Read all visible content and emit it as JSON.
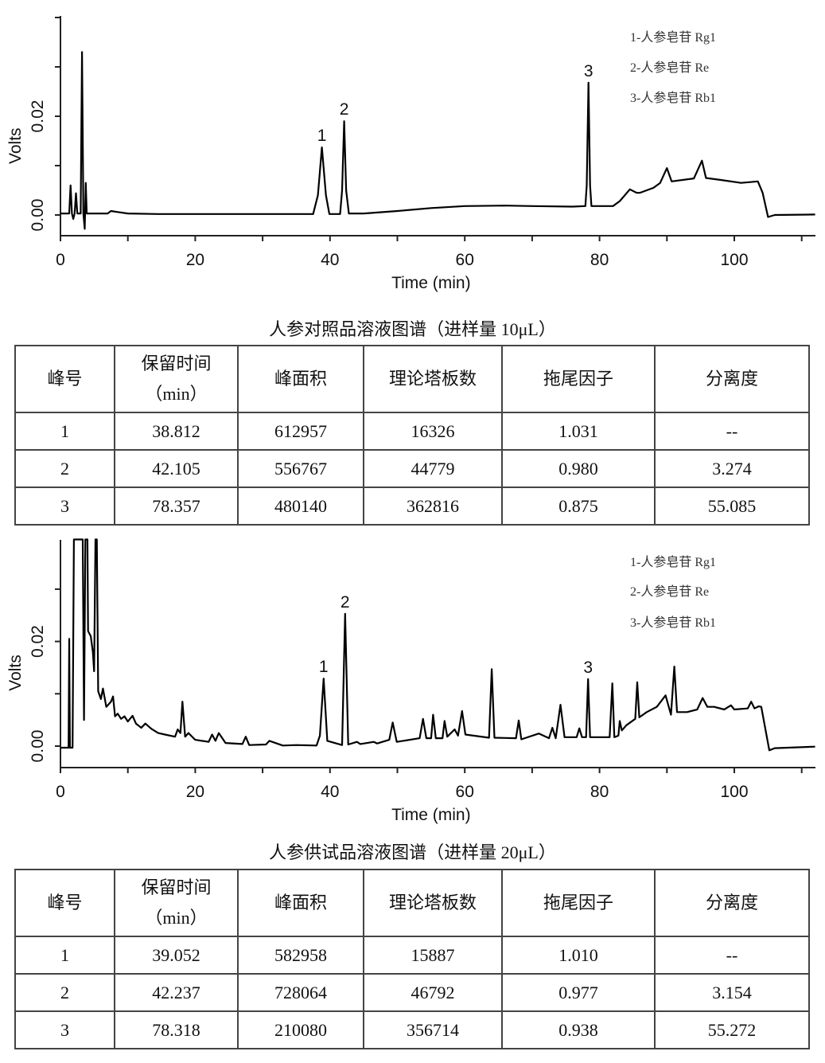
{
  "chart_data": [
    {
      "type": "line",
      "title": "人参对照品溶液图谱（进样量 10μL）",
      "xlabel": "Time (min)",
      "ylabel": "Volts",
      "xlim": [
        0,
        112
      ],
      "ylim": [
        -0.0042,
        0.04
      ],
      "xticks": [
        0,
        20,
        40,
        60,
        80,
        100
      ],
      "xtick_labels": [
        "0",
        "20",
        "40",
        "60",
        "80",
        "100"
      ],
      "yticks": [
        0.0,
        0.02
      ],
      "ytick_labels": [
        "0.00",
        "0.02"
      ],
      "grid": false,
      "legend": [
        "1-人参皂苷 Rg1",
        "2-人参皂苷 Re",
        "3-人参皂苷 Rb1"
      ],
      "legend_position": "top-right",
      "peak_labels": [
        {
          "label": "1",
          "t": 38.8,
          "v": 0.0137
        },
        {
          "label": "2",
          "t": 42.1,
          "v": 0.019
        },
        {
          "label": "3",
          "t": 78.36,
          "v": 0.0268
        }
      ],
      "series": [
        {
          "name": "trace",
          "points": [
            [
              0,
              0.0003
            ],
            [
              1.3,
              0.0003
            ],
            [
              1.5,
              0.006
            ],
            [
              1.7,
              0.0003
            ],
            [
              1.9,
              -0.0008
            ],
            [
              2.1,
              0.0003
            ],
            [
              2.3,
              0.0044
            ],
            [
              2.5,
              0.0003
            ],
            [
              3.0,
              0.0003
            ],
            [
              3.2,
              0.033
            ],
            [
              3.4,
              0.0003
            ],
            [
              3.6,
              -0.0028
            ],
            [
              3.75,
              0.0065
            ],
            [
              3.9,
              0.0003
            ],
            [
              7,
              0.0003
            ],
            [
              7.5,
              0.0008
            ],
            [
              8.5,
              0.0006
            ],
            [
              10,
              0.0003
            ],
            [
              14.5,
              0.0002
            ],
            [
              27,
              0.0002
            ],
            [
              37.5,
              0.0002
            ],
            [
              38.2,
              0.004
            ],
            [
              38.8,
              0.0137
            ],
            [
              39.4,
              0.004
            ],
            [
              39.9,
              0.0002
            ],
            [
              41.5,
              0.0002
            ],
            [
              41.8,
              0.005
            ],
            [
              42.1,
              0.019
            ],
            [
              42.4,
              0.005
            ],
            [
              42.8,
              0.0003
            ],
            [
              45,
              0.0003
            ],
            [
              50,
              0.0008
            ],
            [
              55,
              0.0014
            ],
            [
              60,
              0.0018
            ],
            [
              66,
              0.0019
            ],
            [
              70,
              0.0018
            ],
            [
              76,
              0.0017
            ],
            [
              77.9,
              0.0018
            ],
            [
              78.1,
              0.006
            ],
            [
              78.36,
              0.0268
            ],
            [
              78.6,
              0.006
            ],
            [
              78.8,
              0.0018
            ],
            [
              82,
              0.0018
            ],
            [
              83,
              0.0028
            ],
            [
              84.5,
              0.0052
            ],
            [
              85.5,
              0.0045
            ],
            [
              86,
              0.0045
            ],
            [
              88,
              0.0055
            ],
            [
              89,
              0.0065
            ],
            [
              90,
              0.0095
            ],
            [
              90.7,
              0.0068
            ],
            [
              94,
              0.0074
            ],
            [
              95.2,
              0.011
            ],
            [
              95.8,
              0.0075
            ],
            [
              98,
              0.0071
            ],
            [
              101,
              0.0065
            ],
            [
              103.5,
              0.0068
            ],
            [
              104.2,
              0.0045
            ],
            [
              105,
              -0.0004
            ],
            [
              106,
              0.0
            ],
            [
              112,
              0.0001
            ]
          ]
        }
      ]
    },
    {
      "type": "line",
      "title": "人参供试品溶液图谱（进样量 20μL）",
      "xlabel": "Time (min)",
      "ylabel": "Volts",
      "xlim": [
        0,
        112
      ],
      "ylim": [
        -0.004,
        0.0395
      ],
      "xticks": [
        0,
        20,
        40,
        60,
        80,
        100
      ],
      "xtick_labels": [
        "0",
        "20",
        "40",
        "60",
        "80",
        "100"
      ],
      "yticks": [
        0.0,
        0.02
      ],
      "ytick_labels": [
        "0.00",
        "0.02"
      ],
      "grid": false,
      "legend": [
        "1-人参皂苷 Rg1",
        "2-人参皂苷 Re",
        "3-人参皂苷 Rb1"
      ],
      "legend_position": "top-right",
      "peak_labels": [
        {
          "label": "1",
          "t": 39.05,
          "v": 0.0129
        },
        {
          "label": "2",
          "t": 42.24,
          "v": 0.0253
        },
        {
          "label": "3",
          "t": 78.3,
          "v": 0.0128
        }
      ],
      "series": [
        {
          "name": "trace",
          "points": [
            [
              0,
              -0.0003
            ],
            [
              1.2,
              -0.0003
            ],
            [
              1.3,
              0.0205
            ],
            [
              1.4,
              -0.0003
            ],
            [
              1.8,
              -0.0003
            ],
            [
              2.0,
              0.0395
            ],
            [
              3.3,
              0.0395
            ],
            [
              3.5,
              0.005
            ],
            [
              3.7,
              0.0395
            ],
            [
              4.0,
              0.0395
            ],
            [
              4.1,
              0.022
            ],
            [
              4.5,
              0.021
            ],
            [
              4.8,
              0.018
            ],
            [
              5.0,
              0.0143
            ],
            [
              5.2,
              0.0395
            ],
            [
              5.4,
              0.0395
            ],
            [
              5.6,
              0.0105
            ],
            [
              6.0,
              0.009
            ],
            [
              6.3,
              0.011
            ],
            [
              6.8,
              0.0075
            ],
            [
              7.5,
              0.0085
            ],
            [
              7.8,
              0.0095
            ],
            [
              8.1,
              0.0057
            ],
            [
              8.5,
              0.0062
            ],
            [
              9.0,
              0.0052
            ],
            [
              9.5,
              0.0057
            ],
            [
              10.0,
              0.0047
            ],
            [
              10.7,
              0.0058
            ],
            [
              11.2,
              0.0043
            ],
            [
              12.0,
              0.0035
            ],
            [
              12.6,
              0.0043
            ],
            [
              13.5,
              0.0033
            ],
            [
              14.5,
              0.0025
            ],
            [
              15.5,
              0.0022
            ],
            [
              17.0,
              0.0018
            ],
            [
              17.4,
              0.0032
            ],
            [
              17.8,
              0.0025
            ],
            [
              18.1,
              0.0085
            ],
            [
              18.5,
              0.0018
            ],
            [
              19.0,
              0.0025
            ],
            [
              20,
              0.0012
            ],
            [
              22,
              0.0008
            ],
            [
              22.5,
              0.0022
            ],
            [
              23.0,
              0.001
            ],
            [
              23.5,
              0.0025
            ],
            [
              24.5,
              0.0006
            ],
            [
              27,
              0.0004
            ],
            [
              27.5,
              0.0018
            ],
            [
              28,
              0.0002
            ],
            [
              30.5,
              0.0003
            ],
            [
              31,
              0.001
            ],
            [
              33,
              0.0001
            ],
            [
              35,
              0.0002
            ],
            [
              38,
              0.0001
            ],
            [
              38.5,
              0.002
            ],
            [
              39.05,
              0.0129
            ],
            [
              39.6,
              0.001
            ],
            [
              41.8,
              0.0002
            ],
            [
              42.24,
              0.0253
            ],
            [
              42.7,
              0.0003
            ],
            [
              44,
              0.0008
            ],
            [
              44.5,
              0.0004
            ],
            [
              46.5,
              0.0008
            ],
            [
              47,
              0.0005
            ],
            [
              48.8,
              0.0012
            ],
            [
              49.3,
              0.0045
            ],
            [
              49.9,
              0.0008
            ],
            [
              53.3,
              0.0015
            ],
            [
              53.8,
              0.0052
            ],
            [
              54.3,
              0.0015
            ],
            [
              55.0,
              0.0015
            ],
            [
              55.3,
              0.006
            ],
            [
              55.7,
              0.0015
            ],
            [
              56.7,
              0.0015
            ],
            [
              57,
              0.0048
            ],
            [
              57.4,
              0.0018
            ],
            [
              58.5,
              0.0032
            ],
            [
              59.0,
              0.002
            ],
            [
              59.6,
              0.0067
            ],
            [
              60.1,
              0.0022
            ],
            [
              63.6,
              0.0016
            ],
            [
              64.0,
              0.0147
            ],
            [
              64.4,
              0.0016
            ],
            [
              67.6,
              0.0015
            ],
            [
              68,
              0.0049
            ],
            [
              68.4,
              0.0013
            ],
            [
              71,
              0.0024
            ],
            [
              72.5,
              0.0015
            ],
            [
              73,
              0.0035
            ],
            [
              73.5,
              0.0015
            ],
            [
              74.2,
              0.0079
            ],
            [
              74.8,
              0.0017
            ],
            [
              76.6,
              0.0017
            ],
            [
              77,
              0.0034
            ],
            [
              77.4,
              0.0017
            ],
            [
              78.0,
              0.0017
            ],
            [
              78.3,
              0.0128
            ],
            [
              78.6,
              0.0017
            ],
            [
              81.5,
              0.0017
            ],
            [
              81.9,
              0.012
            ],
            [
              82.2,
              0.0017
            ],
            [
              82.8,
              0.002
            ],
            [
              83,
              0.0048
            ],
            [
              83.3,
              0.003
            ],
            [
              84,
              0.004
            ],
            [
              85.3,
              0.0052
            ],
            [
              85.6,
              0.0122
            ],
            [
              85.9,
              0.0055
            ],
            [
              87,
              0.0065
            ],
            [
              88.5,
              0.0075
            ],
            [
              89.8,
              0.0097
            ],
            [
              90.6,
              0.006
            ],
            [
              91.1,
              0.0152
            ],
            [
              91.5,
              0.0065
            ],
            [
              93,
              0.0065
            ],
            [
              94.5,
              0.007
            ],
            [
              95.3,
              0.0092
            ],
            [
              96,
              0.0075
            ],
            [
              97,
              0.0075
            ],
            [
              98.5,
              0.007
            ],
            [
              99.5,
              0.0078
            ],
            [
              100,
              0.007
            ],
            [
              102,
              0.0072
            ],
            [
              102.5,
              0.0085
            ],
            [
              103,
              0.0072
            ],
            [
              103.6,
              0.0076
            ],
            [
              104,
              0.0075
            ],
            [
              105.2,
              -0.0008
            ],
            [
              106,
              -0.0004
            ],
            [
              112,
              -0.0001
            ]
          ]
        }
      ]
    }
  ],
  "tables": [
    {
      "caption": "人参对照品溶液图谱（进样量 10μL）",
      "headers": [
        "峰号",
        "保留时间",
        "（min）",
        "峰面积",
        "理论塔板数",
        "拖尾因子",
        "分离度"
      ],
      "rows": [
        [
          "1",
          "38.812",
          "612957",
          "16326",
          "1.031",
          "--"
        ],
        [
          "2",
          "42.105",
          "556767",
          "44779",
          "0.980",
          "3.274"
        ],
        [
          "3",
          "78.357",
          "480140",
          "362816",
          "0.875",
          "55.085"
        ]
      ]
    },
    {
      "caption": "人参供试品溶液图谱（进样量 20μL）",
      "headers": [
        "峰号",
        "保留时间",
        "（min）",
        "峰面积",
        "理论塔板数",
        "拖尾因子",
        "分离度"
      ],
      "rows": [
        [
          "1",
          "39.052",
          "582958",
          "15887",
          "1.010",
          "--"
        ],
        [
          "2",
          "42.237",
          "728064",
          "46792",
          "0.977",
          "3.154"
        ],
        [
          "3",
          "78.318",
          "210080",
          "356714",
          "0.938",
          "55.272"
        ]
      ]
    }
  ]
}
